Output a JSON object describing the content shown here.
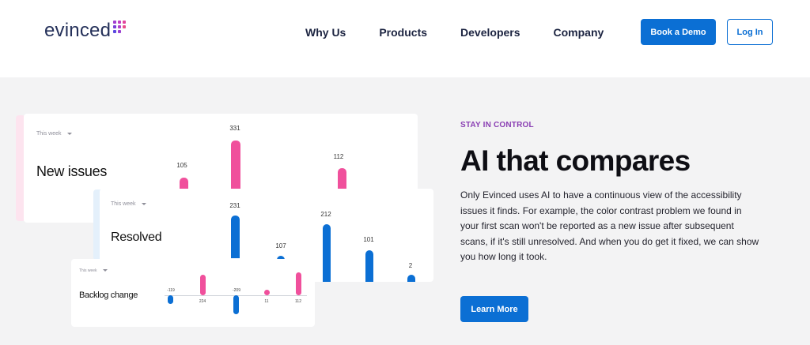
{
  "header": {
    "logo_text": "evinced",
    "nav": [
      "Why Us",
      "Products",
      "Developers",
      "Company"
    ],
    "book_demo_label": "Book a Demo",
    "login_label": "Log In"
  },
  "cards": {
    "new_issues": {
      "period": "This week",
      "title": "New issues",
      "values": [
        "105",
        "331",
        "112"
      ]
    },
    "resolved": {
      "period": "This week",
      "title": "Resolved",
      "values": [
        "231",
        "107",
        "212",
        "101",
        "2"
      ]
    },
    "backlog": {
      "period": "This week",
      "title": "Backlog change",
      "values": [
        "-119",
        "224",
        "-209",
        "11",
        "112"
      ]
    }
  },
  "section": {
    "eyebrow": "STAY IN CONTROL",
    "headline": "AI that compares",
    "body": "Only Evinced uses AI to have a continuous view of the accessibility issues it finds. For example, the color contrast problem we found in your first scan won't be reported as a new issue after subsequent scans, if it's still unresolved. And when you do get it fixed, we can show you how long it took.",
    "cta_label": "Learn More"
  },
  "colors": {
    "brand_blue": "#0b6fd4",
    "pink": "#f0509c",
    "eyebrow_purple": "#8a3fb3"
  }
}
